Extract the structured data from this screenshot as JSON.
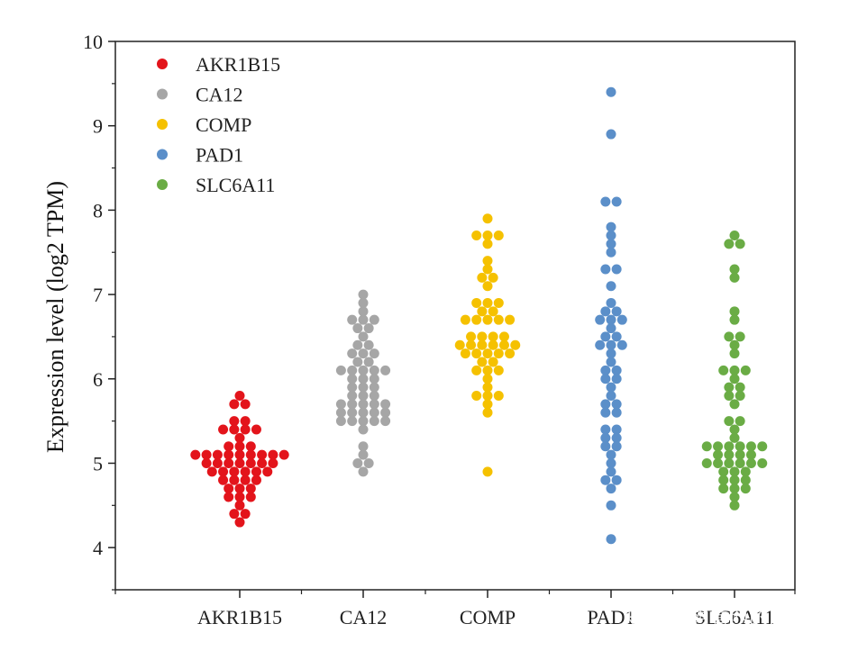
{
  "chart_data": {
    "type": "scatter",
    "subtype": "beeswarm",
    "title": "",
    "xlabel": "",
    "ylabel": "Expression level (log2 TPM)",
    "ylim": [
      3.5,
      10
    ],
    "yticks": [
      4,
      5,
      6,
      7,
      8,
      9,
      10
    ],
    "categories": [
      "AKR1B15",
      "CA12",
      "COMP",
      "PAD1",
      "SLC6A11"
    ],
    "legend_position": "top-left",
    "grid": false,
    "series": [
      {
        "name": "AKR1B15",
        "color": "#e3141b",
        "values": [
          5.8,
          5.7,
          5.7,
          5.5,
          5.5,
          5.4,
          5.4,
          5.4,
          5.4,
          5.3,
          5.2,
          5.2,
          5.2,
          5.1,
          5.1,
          5.1,
          5.1,
          5.1,
          5.1,
          5.1,
          5.1,
          5.1,
          5.0,
          5.0,
          5.0,
          5.0,
          5.0,
          5.0,
          5.0,
          4.9,
          4.9,
          4.9,
          4.9,
          4.9,
          4.9,
          4.8,
          4.8,
          4.8,
          4.8,
          4.7,
          4.7,
          4.7,
          4.6,
          4.6,
          4.6,
          4.5,
          4.4,
          4.4,
          4.3
        ]
      },
      {
        "name": "CA12",
        "color": "#a6a6a6",
        "values": [
          7.0,
          6.9,
          6.8,
          6.7,
          6.7,
          6.7,
          6.6,
          6.6,
          6.5,
          6.4,
          6.4,
          6.3,
          6.3,
          6.3,
          6.2,
          6.2,
          6.1,
          6.1,
          6.1,
          6.1,
          6.1,
          6.0,
          6.0,
          6.0,
          5.9,
          5.9,
          5.9,
          5.8,
          5.8,
          5.8,
          5.7,
          5.7,
          5.7,
          5.7,
          5.7,
          5.6,
          5.6,
          5.6,
          5.6,
          5.6,
          5.5,
          5.5,
          5.5,
          5.5,
          5.5,
          5.4,
          5.2,
          5.1,
          5.0,
          5.0,
          4.9
        ]
      },
      {
        "name": "COMP",
        "color": "#f5c100",
        "values": [
          7.9,
          7.7,
          7.7,
          7.7,
          7.6,
          7.4,
          7.3,
          7.2,
          7.2,
          7.1,
          6.9,
          6.9,
          6.9,
          6.8,
          6.8,
          6.7,
          6.7,
          6.7,
          6.7,
          6.7,
          6.5,
          6.5,
          6.5,
          6.5,
          6.4,
          6.4,
          6.4,
          6.4,
          6.4,
          6.4,
          6.3,
          6.3,
          6.3,
          6.3,
          6.3,
          6.2,
          6.2,
          6.1,
          6.1,
          6.1,
          6.0,
          5.9,
          5.8,
          5.8,
          5.8,
          5.7,
          5.6,
          4.9
        ]
      },
      {
        "name": "PAD1",
        "color": "#5b8fc9",
        "values": [
          9.4,
          8.9,
          8.1,
          8.1,
          7.8,
          7.7,
          7.6,
          7.5,
          7.3,
          7.3,
          7.1,
          6.9,
          6.8,
          6.8,
          6.7,
          6.7,
          6.7,
          6.6,
          6.5,
          6.5,
          6.4,
          6.4,
          6.4,
          6.3,
          6.2,
          6.1,
          6.1,
          6.0,
          6.0,
          5.9,
          5.8,
          5.7,
          5.7,
          5.6,
          5.6,
          5.4,
          5.4,
          5.3,
          5.3,
          5.2,
          5.2,
          5.1,
          5.0,
          4.9,
          4.8,
          4.8,
          4.7,
          4.5,
          4.1
        ]
      },
      {
        "name": "SLC6A11",
        "color": "#6aac45",
        "values": [
          7.7,
          7.6,
          7.6,
          7.3,
          7.2,
          6.8,
          6.7,
          6.5,
          6.5,
          6.4,
          6.3,
          6.1,
          6.1,
          6.1,
          6.0,
          5.9,
          5.9,
          5.8,
          5.8,
          5.7,
          5.5,
          5.5,
          5.4,
          5.3,
          5.2,
          5.2,
          5.2,
          5.2,
          5.2,
          5.2,
          5.1,
          5.1,
          5.1,
          5.1,
          5.0,
          5.0,
          5.0,
          5.0,
          5.0,
          5.0,
          4.9,
          4.9,
          4.9,
          4.8,
          4.8,
          4.8,
          4.7,
          4.7,
          4.7,
          4.6,
          4.5
        ]
      }
    ]
  },
  "watermark": {
    "text": "知乎 @想看西的瓜"
  }
}
